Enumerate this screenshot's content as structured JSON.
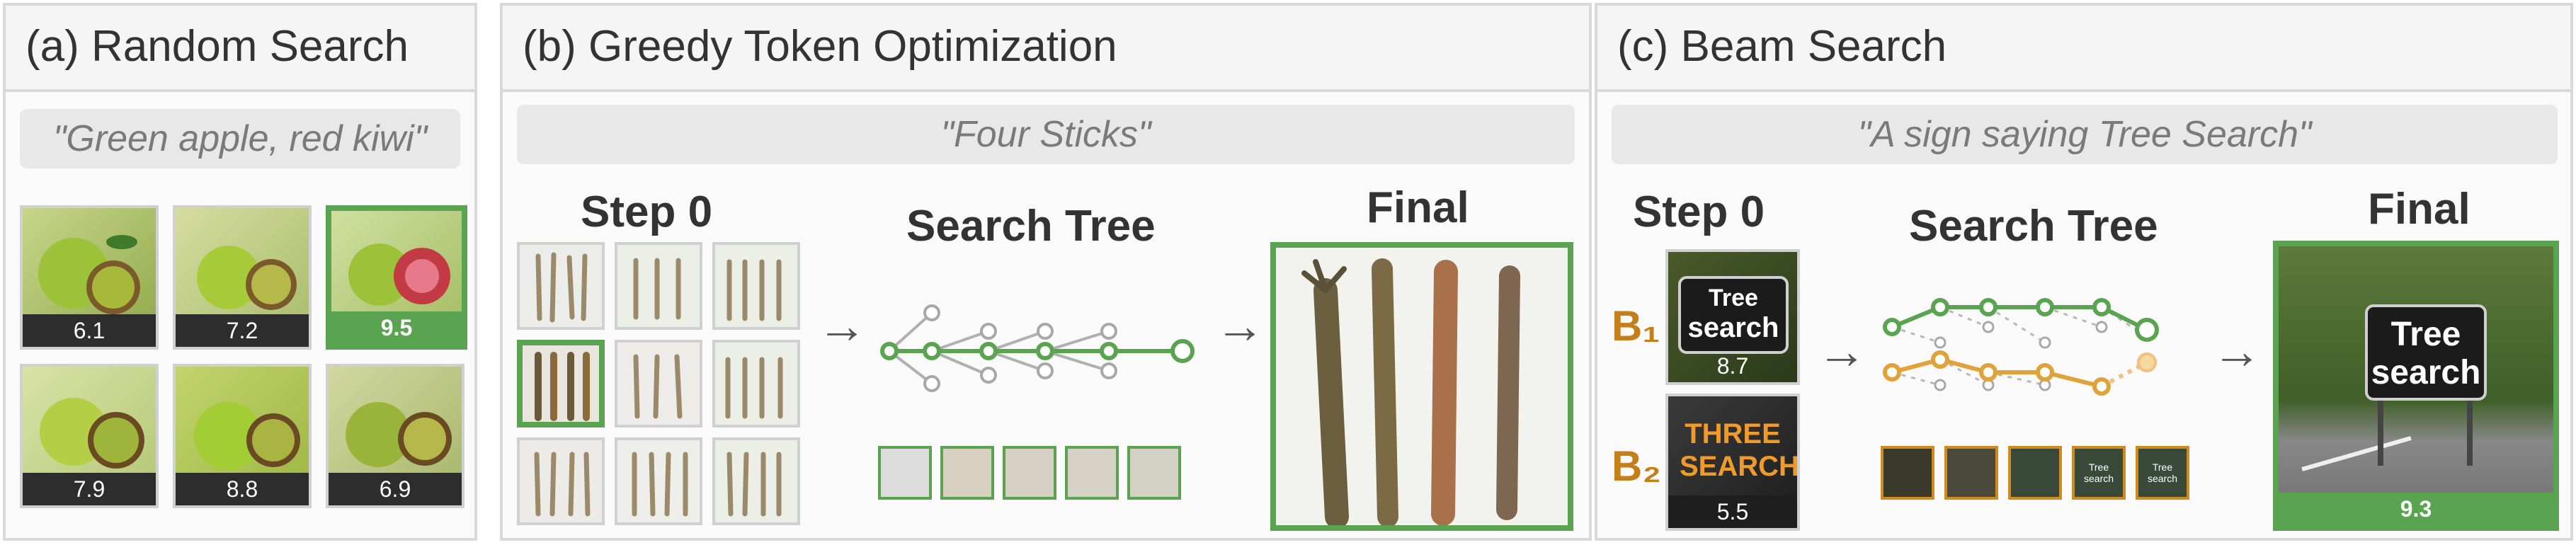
{
  "panels": {
    "a": {
      "title": "(a) Random Search",
      "prompt": "\"Green apple, red kiwi\""
    },
    "b": {
      "title": "(b) Greedy Token Optimization",
      "prompt": "\"Four Sticks\"",
      "step_label": "Step 0",
      "tree_label": "Search Tree",
      "final_label": "Final"
    },
    "c": {
      "title": "(c) Beam Search",
      "prompt": "\"A sign saying Tree Search\"",
      "step_label": "Step 0",
      "tree_label": "Search Tree",
      "final_label": "Final",
      "final_score": "9.3",
      "beam1_label": "B₁",
      "beam2_label": "B₂",
      "beam1_text1": "Tree",
      "beam1_text2": "search",
      "beam1_score": "8.7",
      "beam2_text1": "THREE",
      "beam2_text2": "SEARCH",
      "beam2_score": "5.5",
      "final_sign1": "Tree",
      "final_sign2": "search",
      "mini_sign1": "Tree",
      "mini_sign2": "search"
    }
  },
  "scores": [
    "6.1",
    "7.2",
    "9.5",
    "7.9",
    "8.8",
    "6.9"
  ],
  "colors": {
    "green": "#5aa351",
    "orange": "#d08a1e",
    "beam_label": "#c47f1a"
  }
}
